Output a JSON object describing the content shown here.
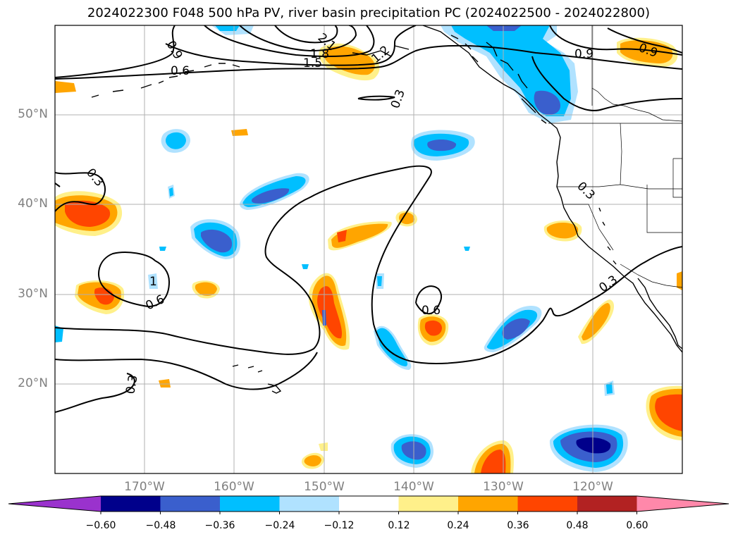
{
  "title": "2024022300 F048 500 hPa PV, river basin precipitation PC (2024022500 - 2024022800)",
  "lat_labels": [
    "50°N",
    "40°N",
    "30°N",
    "20°N"
  ],
  "lon_labels": [
    "170°W",
    "160°W",
    "150°W",
    "140°W",
    "130°W",
    "120°W"
  ],
  "colorbar": {
    "tick_labels": [
      "−0.60",
      "−0.48",
      "−0.36",
      "−0.24",
      "−0.12",
      "0.12",
      "0.24",
      "0.36",
      "0.48",
      "0.60"
    ],
    "colors": [
      "#9a32cd",
      "#00008b",
      "#3a5fcd",
      "#00bfff",
      "#b0e2ff",
      "#ffffff",
      "#fff08a",
      "#ffa500",
      "#ff4500",
      "#b22222",
      "#ff88aa"
    ]
  },
  "contour_labels": [
    "0.9",
    "1.2",
    "1.5",
    "1.8",
    "2.1",
    "0.6",
    "0.3",
    "0.3",
    "0.9",
    "0.9",
    "0.3",
    "0.3",
    "0.6",
    "0.6",
    "0.3",
    "1"
  ],
  "colors": {
    "grid": "#b0b0b0",
    "coast": "#000000",
    "contour": "#000000",
    "tick_text": "#808080"
  }
}
